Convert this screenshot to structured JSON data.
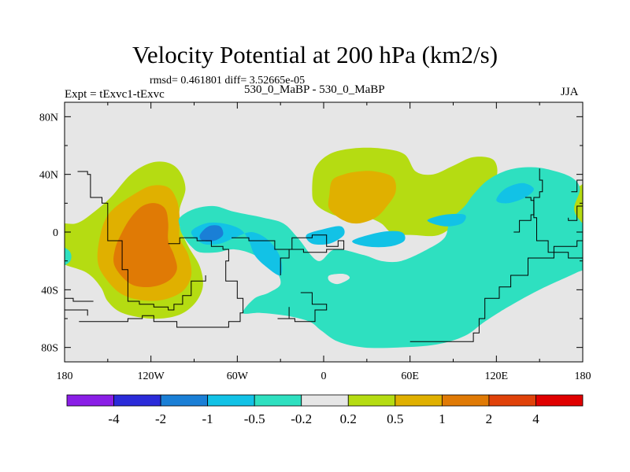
{
  "title": "Velocity Potential at 200 hPa (km2/s)",
  "stats": "rmsd= 0.461801  diff= 3.52665e-05",
  "expt": "Expt = tExvc1-tExvc",
  "subtitle": "530_0_MaBP - 530_0_MaBP",
  "season": "JJA",
  "chart_data": {
    "type": "heatmap",
    "title": "Velocity Potential at 200 hPa (km2/s)",
    "xlabel": "",
    "ylabel": "",
    "xlim": [
      -180,
      180
    ],
    "ylim": [
      -90,
      90
    ],
    "x_ticks": [
      {
        "value": -180,
        "label": "180"
      },
      {
        "value": -120,
        "label": "120W"
      },
      {
        "value": -60,
        "label": "60W"
      },
      {
        "value": 0,
        "label": "0"
      },
      {
        "value": 60,
        "label": "60E"
      },
      {
        "value": 120,
        "label": "120E"
      },
      {
        "value": 180,
        "label": "180"
      }
    ],
    "y_ticks": [
      {
        "value": 80,
        "label": "80N"
      },
      {
        "value": 40,
        "label": "40N"
      },
      {
        "value": 0,
        "label": "0"
      },
      {
        "value": -40,
        "label": "40S"
      },
      {
        "value": -80,
        "label": "80S"
      }
    ],
    "colorbar": {
      "colors": [
        "#8a1ee6",
        "#2b2bd9",
        "#1a7fd6",
        "#12c2e6",
        "#2ee0c0",
        "#e6e6e6",
        "#b5dc12",
        "#e0b000",
        "#e07a05",
        "#e0420a",
        "#e00000"
      ],
      "boundaries": [
        "-4",
        "-2",
        "-1",
        "-0.5",
        "-0.2",
        "0.2",
        "0.5",
        "1",
        "2",
        "4"
      ]
    },
    "regions": [
      {
        "level": "0.2 to 0.5",
        "color": "#b5dc12",
        "points": [
          [
            -187,
            -18
          ],
          [
            -165,
            -28
          ],
          [
            -155,
            -38
          ],
          [
            -150,
            -48
          ],
          [
            -140,
            -56
          ],
          [
            -120,
            -60
          ],
          [
            -102,
            -58
          ],
          [
            -90,
            -50
          ],
          [
            -84,
            -38
          ],
          [
            -86,
            -24
          ],
          [
            -94,
            -10
          ],
          [
            -100,
            4
          ],
          [
            -100,
            16
          ],
          [
            -96,
            30
          ],
          [
            -100,
            42
          ],
          [
            -108,
            48
          ],
          [
            -120,
            48
          ],
          [
            -134,
            40
          ],
          [
            -148,
            24
          ],
          [
            -162,
            12
          ],
          [
            -172,
            6
          ],
          [
            -187,
            4
          ]
        ]
      },
      {
        "level": "0.5 to 1",
        "color": "#e0b000",
        "points": [
          [
            -153,
            -30
          ],
          [
            -142,
            -42
          ],
          [
            -128,
            -47
          ],
          [
            -112,
            -47
          ],
          [
            -98,
            -41
          ],
          [
            -92,
            -30
          ],
          [
            -94,
            -16
          ],
          [
            -100,
            -4
          ],
          [
            -100,
            10
          ],
          [
            -102,
            22
          ],
          [
            -108,
            31
          ],
          [
            -120,
            32
          ],
          [
            -132,
            26
          ],
          [
            -145,
            17
          ],
          [
            -152,
            8
          ],
          [
            -156,
            -6
          ],
          [
            -157,
            -20
          ]
        ]
      },
      {
        "level": "1 to 2",
        "color": "#e07a05",
        "points": [
          [
            -145,
            -24
          ],
          [
            -134,
            -36
          ],
          [
            -120,
            -38
          ],
          [
            -108,
            -34
          ],
          [
            -102,
            -26
          ],
          [
            -104,
            -16
          ],
          [
            -108,
            -6
          ],
          [
            -108,
            6
          ],
          [
            -110,
            16
          ],
          [
            -117,
            20
          ],
          [
            -126,
            18
          ],
          [
            -134,
            10
          ],
          [
            -140,
            0
          ],
          [
            -145,
            -12
          ]
        ]
      },
      {
        "level": "0.2 to 0.5",
        "color": "#b5dc12",
        "points": [
          [
            -8,
            28
          ],
          [
            -6,
            44
          ],
          [
            4,
            54
          ],
          [
            20,
            58
          ],
          [
            40,
            58
          ],
          [
            56,
            54
          ],
          [
            64,
            42
          ],
          [
            76,
            40
          ],
          [
            90,
            46
          ],
          [
            104,
            52
          ],
          [
            118,
            50
          ],
          [
            120,
            38
          ],
          [
            110,
            26
          ],
          [
            100,
            18
          ],
          [
            94,
            8
          ],
          [
            80,
            -2
          ],
          [
            62,
            -2
          ],
          [
            48,
            -1
          ],
          [
            40,
            6
          ],
          [
            30,
            10
          ],
          [
            14,
            10
          ],
          [
            2,
            14
          ],
          [
            -6,
            20
          ]
        ]
      },
      {
        "level": "0.5 to 1",
        "color": "#e0b000",
        "points": [
          [
            4,
            16
          ],
          [
            4,
            26
          ],
          [
            6,
            36
          ],
          [
            14,
            40
          ],
          [
            24,
            42
          ],
          [
            36,
            42
          ],
          [
            48,
            38
          ],
          [
            50,
            28
          ],
          [
            44,
            18
          ],
          [
            36,
            10
          ],
          [
            24,
            6
          ],
          [
            14,
            8
          ]
        ]
      },
      {
        "level": "0.2 to 0.5",
        "color": "#b5dc12",
        "points": [
          [
            187,
            -4
          ],
          [
            178,
            -2
          ],
          [
            172,
            4
          ],
          [
            168,
            14
          ],
          [
            170,
            26
          ],
          [
            178,
            32
          ],
          [
            187,
            34
          ]
        ]
      },
      {
        "level": "-0.5 to -0.2",
        "color": "#2ee0c0",
        "points": [
          [
            -98,
            -2
          ],
          [
            -100,
            4
          ],
          [
            -100,
            10
          ],
          [
            -90,
            16
          ],
          [
            -76,
            18
          ],
          [
            -62,
            14
          ],
          [
            -42,
            10
          ],
          [
            -28,
            6
          ],
          [
            -18,
            -4
          ],
          [
            -4,
            -20
          ],
          [
            8,
            -12
          ],
          [
            28,
            -16
          ],
          [
            40,
            -20
          ],
          [
            54,
            -20
          ],
          [
            72,
            -12
          ],
          [
            84,
            -4
          ],
          [
            88,
            8
          ],
          [
            98,
            18
          ],
          [
            104,
            26
          ],
          [
            114,
            36
          ],
          [
            128,
            43
          ],
          [
            144,
            45
          ],
          [
            158,
            43
          ],
          [
            172,
            38
          ],
          [
            178,
            30
          ],
          [
            174,
            16
          ],
          [
            180,
            6
          ],
          [
            187,
            2
          ],
          [
            187,
            -22
          ],
          [
            176,
            -28
          ],
          [
            150,
            -40
          ],
          [
            128,
            -52
          ],
          [
            112,
            -62
          ],
          [
            98,
            -72
          ],
          [
            78,
            -78
          ],
          [
            52,
            -80
          ],
          [
            28,
            -80
          ],
          [
            10,
            -76
          ],
          [
            -2,
            -68
          ],
          [
            -10,
            -62
          ],
          [
            -26,
            -58
          ],
          [
            -44,
            -56
          ],
          [
            -56,
            -56
          ],
          [
            -48,
            -46
          ],
          [
            -38,
            -42
          ],
          [
            -30,
            -36
          ],
          [
            -34,
            -26
          ],
          [
            -48,
            -16
          ],
          [
            -62,
            -12
          ],
          [
            -74,
            -14
          ],
          [
            -86,
            -14
          ],
          [
            -92,
            -10
          ]
        ]
      },
      {
        "level": "-1 to -0.5",
        "color": "#12c2e6",
        "points": [
          [
            -92,
            0
          ],
          [
            -82,
            6
          ],
          [
            -70,
            6
          ],
          [
            -58,
            2
          ],
          [
            -52,
            -6
          ],
          [
            -48,
            -16
          ],
          [
            -40,
            -24
          ],
          [
            -30,
            -30
          ],
          [
            -30,
            -18
          ],
          [
            -38,
            -6
          ],
          [
            -50,
            0
          ],
          [
            -62,
            -4
          ],
          [
            -72,
            -8
          ],
          [
            -84,
            -8
          ]
        ]
      },
      {
        "level": "-1 to -0.5",
        "color": "#12c2e6",
        "points": [
          [
            -12,
            -2
          ],
          [
            0,
            2
          ],
          [
            12,
            4
          ],
          [
            14,
            -2
          ],
          [
            4,
            -8
          ],
          [
            -8,
            -8
          ]
        ]
      },
      {
        "level": "-1 to -0.5",
        "color": "#12c2e6",
        "points": [
          [
            20,
            -6
          ],
          [
            40,
            0
          ],
          [
            54,
            0
          ],
          [
            56,
            -6
          ],
          [
            46,
            -10
          ],
          [
            30,
            -10
          ]
        ]
      },
      {
        "level": "-1 to -0.5",
        "color": "#12c2e6",
        "points": [
          [
            72,
            8
          ],
          [
            84,
            12
          ],
          [
            98,
            12
          ],
          [
            96,
            6
          ],
          [
            84,
            4
          ]
        ]
      },
      {
        "level": "-1 to -0.5",
        "color": "#12c2e6",
        "points": [
          [
            120,
            22
          ],
          [
            126,
            30
          ],
          [
            138,
            34
          ],
          [
            146,
            30
          ],
          [
            140,
            24
          ],
          [
            128,
            20
          ]
        ]
      },
      {
        "level": "-2 to -1",
        "color": "#1a7fd6",
        "points": [
          [
            -86,
            -2
          ],
          [
            -80,
            4
          ],
          [
            -72,
            4
          ],
          [
            -70,
            -2
          ],
          [
            -76,
            -6
          ],
          [
            -84,
            -6
          ]
        ]
      },
      {
        "level": "-0.5 to -0.2",
        "color": "#2ee0c0",
        "points": [
          [
            -187,
            -12
          ],
          [
            -182,
            -10
          ],
          [
            -176,
            -14
          ],
          [
            -176,
            -20
          ],
          [
            -182,
            -24
          ],
          [
            -187,
            -24
          ]
        ]
      },
      {
        "level": "-0.2 to 0.2",
        "color": "#e6e6e6",
        "points": [
          [
            4,
            -30
          ],
          [
            4,
            -34
          ],
          [
            10,
            -36
          ],
          [
            18,
            -32
          ],
          [
            14,
            -29
          ]
        ]
      }
    ],
    "coastline_segments": [
      [
        [
          -171,
          42
        ],
        [
          -164,
          40
        ],
        [
          -162,
          24
        ],
        [
          -154,
          20
        ],
        [
          -150,
          -6
        ],
        [
          -140,
          -26
        ],
        [
          -136,
          -48
        ],
        [
          -128,
          -50
        ],
        [
          -118,
          -52
        ],
        [
          -108,
          -54
        ],
        [
          -104,
          -50
        ],
        [
          -98,
          -44
        ],
        [
          -92,
          -34
        ],
        [
          -82,
          -30
        ]
      ],
      [
        [
          -108,
          -8
        ],
        [
          -100,
          -4
        ],
        [
          -88,
          -6
        ],
        [
          -78,
          -10
        ],
        [
          -70,
          -12
        ],
        [
          -66,
          -20
        ],
        [
          -68,
          -34
        ],
        [
          -60,
          -46
        ],
        [
          -56,
          -56
        ],
        [
          -58,
          -62
        ],
        [
          -66,
          -66
        ],
        [
          -88,
          -66
        ],
        [
          -102,
          -62
        ],
        [
          -118,
          -58
        ],
        [
          -126,
          -60
        ],
        [
          -136,
          -62
        ],
        [
          -170,
          -62
        ]
      ],
      [
        [
          -64,
          -4
        ],
        [
          -52,
          -6
        ],
        [
          -34,
          -12
        ],
        [
          -22,
          -4
        ],
        [
          -8,
          -2
        ],
        [
          2,
          -10
        ],
        [
          10,
          -6
        ],
        [
          14,
          -12
        ],
        [
          2,
          -14
        ],
        [
          -14,
          -12
        ],
        [
          -24,
          -18
        ],
        [
          -30,
          -30
        ]
      ],
      [
        [
          60,
          -76
        ],
        [
          90,
          -76
        ],
        [
          104,
          -70
        ],
        [
          108,
          -60
        ],
        [
          112,
          -46
        ],
        [
          122,
          -38
        ],
        [
          130,
          -30
        ],
        [
          142,
          -18
        ],
        [
          160,
          -10
        ],
        [
          176,
          -6
        ],
        [
          184,
          -6
        ]
      ],
      [
        [
          140,
          24
        ],
        [
          144,
          22
        ],
        [
          146,
          10
        ],
        [
          148,
          -6
        ],
        [
          156,
          -14
        ],
        [
          170,
          -18
        ],
        [
          184,
          -16
        ]
      ],
      [
        [
          -160,
          -48
        ],
        [
          -174,
          -46
        ],
        [
          -180,
          -54
        ],
        [
          -164,
          -58
        ]
      ],
      [
        [
          -16,
          -42
        ],
        [
          -8,
          -50
        ],
        [
          2,
          -54
        ],
        [
          -6,
          -62
        ],
        [
          -20,
          -60
        ],
        [
          -32,
          -60
        ],
        [
          -24,
          -52
        ]
      ],
      [
        [
          132,
          0
        ],
        [
          136,
          8
        ],
        [
          144,
          12
        ],
        [
          146,
          24
        ],
        [
          150,
          28
        ],
        [
          152,
          36
        ],
        [
          150,
          44
        ]
      ],
      [
        [
          172,
          28
        ],
        [
          176,
          36
        ],
        [
          180,
          40
        ],
        [
          180,
          18
        ],
        [
          176,
          8
        ],
        [
          170,
          10
        ]
      ]
    ],
    "legend_position": "bottom"
  }
}
